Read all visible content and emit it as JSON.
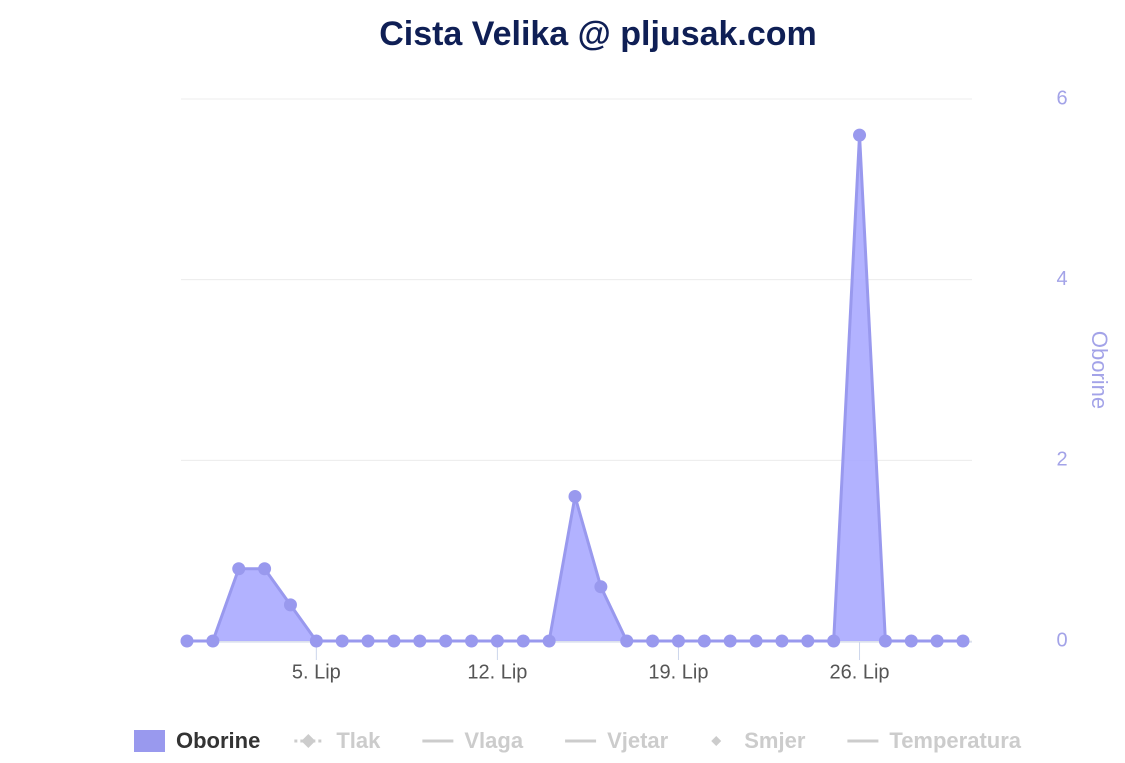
{
  "chart_data": {
    "type": "area",
    "title": "Cista Velika @ pljusak.com",
    "categories": [
      null,
      null,
      null,
      null,
      null,
      "5. Lip",
      null,
      null,
      null,
      null,
      null,
      null,
      "12. Lip",
      null,
      null,
      null,
      null,
      null,
      null,
      "19. Lip",
      null,
      null,
      null,
      null,
      null,
      null,
      "26. Lip",
      null,
      null,
      null,
      null
    ],
    "series": [
      {
        "name": "Oborine",
        "color": "#9999ee",
        "axis": "y2",
        "values": [
          0,
          0,
          0.8,
          0.8,
          0.4,
          0,
          0,
          0,
          0,
          0,
          0,
          0,
          0,
          0,
          0,
          1.6,
          0.6,
          0,
          0,
          0,
          0,
          0,
          0,
          0,
          0,
          0,
          5.6,
          0,
          0,
          0,
          0
        ]
      }
    ],
    "legend_hidden": [
      "Tlak",
      "Vlaga",
      "Vjetar",
      "Smjer",
      "Temperatura"
    ],
    "y2_label": "Oborine",
    "y2lim": [
      0,
      6
    ],
    "y2ticks": [
      0,
      2,
      4,
      6
    ],
    "grid": true
  }
}
